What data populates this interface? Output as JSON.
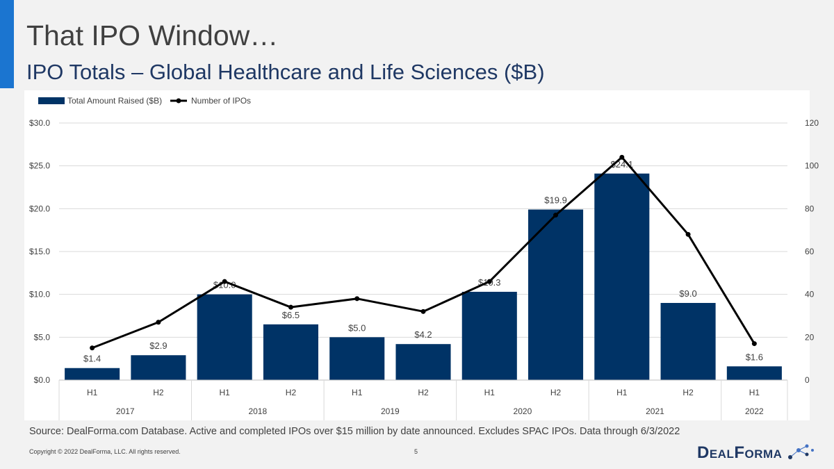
{
  "page": {
    "title": "That IPO Window…",
    "subtitle": "IPO Totals – Global Healthcare and Life Sciences ($B)",
    "source": "Source: DealForma.com Database. Active and completed IPOs over $15 million by date announced. Excludes SPAC IPOs. Data through 6/3/2022",
    "copyright": "Copyright © 2022 DealForma, LLC. All rights reserved.",
    "page_number": "5",
    "logo_text": "DealForma"
  },
  "colors": {
    "accent": "#1b75d0",
    "bar": "#003366",
    "line": "#000000",
    "title": "#404040",
    "subtitle": "#1f3864"
  },
  "chart_data": {
    "type": "bar",
    "legend_position": "top-left",
    "grid": true,
    "categories": [
      "H1",
      "H2",
      "H1",
      "H2",
      "H1",
      "H2",
      "H1",
      "H2",
      "H1",
      "H2",
      "H1"
    ],
    "groups": [
      {
        "label": "2017",
        "count": 2
      },
      {
        "label": "2018",
        "count": 2
      },
      {
        "label": "2019",
        "count": 2
      },
      {
        "label": "2020",
        "count": 2
      },
      {
        "label": "2021",
        "count": 2
      },
      {
        "label": "2022",
        "count": 1
      }
    ],
    "series": [
      {
        "name": "Total Amount Raised ($B)",
        "type": "bar",
        "axis": "left",
        "values": [
          1.4,
          2.9,
          10.0,
          6.5,
          5.0,
          4.2,
          10.3,
          19.9,
          24.1,
          9.0,
          1.6
        ],
        "labels": [
          "$1.4",
          "$2.9",
          "$10.0",
          "$6.5",
          "$5.0",
          "$4.2",
          "$10.3",
          "$19.9",
          "$24.1",
          "$9.0",
          "$1.6"
        ]
      },
      {
        "name": "Number of IPOs",
        "type": "line",
        "axis": "right",
        "values": [
          15,
          27,
          46,
          34,
          38,
          32,
          46,
          77,
          104,
          68,
          17
        ]
      }
    ],
    "y_left": {
      "min": 0,
      "max": 30,
      "ticks": [
        0,
        5,
        10,
        15,
        20,
        25,
        30
      ],
      "tick_labels": [
        "$0.0",
        "$5.0",
        "$10.0",
        "$15.0",
        "$20.0",
        "$25.0",
        "$30.0"
      ]
    },
    "y_right": {
      "min": 0,
      "max": 120,
      "ticks": [
        0,
        20,
        40,
        60,
        80,
        100,
        120
      ],
      "tick_labels": [
        "0",
        "20",
        "40",
        "60",
        "80",
        "100",
        "120"
      ]
    }
  }
}
